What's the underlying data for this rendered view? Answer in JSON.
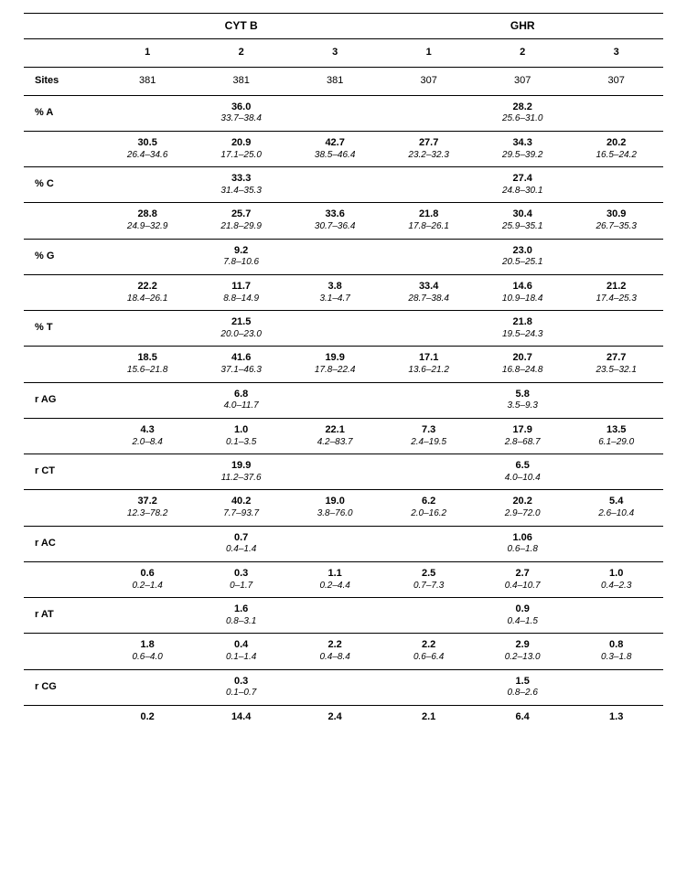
{
  "headers": {
    "group1": "CYT B",
    "group2": "GHR",
    "cols": [
      "1",
      "2",
      "3",
      "1",
      "2",
      "3"
    ],
    "sites_label": "Sites",
    "sites_vals": [
      "381",
      "381",
      "381",
      "307",
      "307",
      "307"
    ]
  },
  "rows": [
    {
      "label": "% A",
      "overall": [
        {
          "mean": "36.0",
          "range": "33.7–38.4"
        },
        {
          "mean": "28.2",
          "range": "25.6–31.0"
        }
      ],
      "vals": [
        {
          "mean": "30.5",
          "range": "26.4–34.6"
        },
        {
          "mean": "20.9",
          "range": "17.1–25.0"
        },
        {
          "mean": "42.7",
          "range": "38.5–46.4"
        },
        {
          "mean": "27.7",
          "range": "23.2–32.3"
        },
        {
          "mean": "34.3",
          "range": "29.5–39.2"
        },
        {
          "mean": "20.2",
          "range": "16.5–24.2"
        }
      ]
    },
    {
      "label": "% C",
      "overall": [
        {
          "mean": "33.3",
          "range": "31.4–35.3"
        },
        {
          "mean": "27.4",
          "range": "24.8–30.1"
        }
      ],
      "vals": [
        {
          "mean": "28.8",
          "range": "24.9–32.9"
        },
        {
          "mean": "25.7",
          "range": "21.8–29.9"
        },
        {
          "mean": "33.6",
          "range": "30.7–36.4"
        },
        {
          "mean": "21.8",
          "range": "17.8–26.1"
        },
        {
          "mean": "30.4",
          "range": "25.9–35.1"
        },
        {
          "mean": "30.9",
          "range": "26.7–35.3"
        }
      ]
    },
    {
      "label": "% G",
      "overall": [
        {
          "mean": "9.2",
          "range": "7.8–10.6"
        },
        {
          "mean": "23.0",
          "range": "20.5–25.1"
        }
      ],
      "vals": [
        {
          "mean": "22.2",
          "range": "18.4–26.1"
        },
        {
          "mean": "11.7",
          "range": "8.8–14.9"
        },
        {
          "mean": "3.8",
          "range": "3.1–4.7"
        },
        {
          "mean": "33.4",
          "range": "28.7–38.4"
        },
        {
          "mean": "14.6",
          "range": "10.9–18.4"
        },
        {
          "mean": "21.2",
          "range": "17.4–25.3"
        }
      ]
    },
    {
      "label": "% T",
      "overall": [
        {
          "mean": "21.5",
          "range": "20.0–23.0"
        },
        {
          "mean": "21.8",
          "range": "19.5–24.3"
        }
      ],
      "vals": [
        {
          "mean": "18.5",
          "range": "15.6–21.8"
        },
        {
          "mean": "41.6",
          "range": "37.1–46.3"
        },
        {
          "mean": "19.9",
          "range": "17.8–22.4"
        },
        {
          "mean": "17.1",
          "range": "13.6–21.2"
        },
        {
          "mean": "20.7",
          "range": "16.8–24.8"
        },
        {
          "mean": "27.7",
          "range": "23.5–32.1"
        }
      ]
    },
    {
      "label": "r AG",
      "overall": [
        {
          "mean": "6.8",
          "range": "4.0–11.7"
        },
        {
          "mean": "5.8",
          "range": "3.5–9.3"
        }
      ],
      "vals": [
        {
          "mean": "4.3",
          "range": "2.0–8.4"
        },
        {
          "mean": "1.0",
          "range": "0.1–3.5"
        },
        {
          "mean": "22.1",
          "range": "4.2–83.7"
        },
        {
          "mean": "7.3",
          "range": "2.4–19.5"
        },
        {
          "mean": "17.9",
          "range": "2.8–68.7"
        },
        {
          "mean": "13.5",
          "range": "6.1–29.0"
        }
      ]
    },
    {
      "label": "r CT",
      "overall": [
        {
          "mean": "19.9",
          "range": "11.2–37.6"
        },
        {
          "mean": "6.5",
          "range": "4.0–10.4"
        }
      ],
      "vals": [
        {
          "mean": "37.2",
          "range": "12.3–78.2"
        },
        {
          "mean": "40.2",
          "range": "7.7–93.7"
        },
        {
          "mean": "19.0",
          "range": "3.8–76.0"
        },
        {
          "mean": "6.2",
          "range": "2.0–16.2"
        },
        {
          "mean": "20.2",
          "range": "2.9–72.0"
        },
        {
          "mean": "5.4",
          "range": "2.6–10.4"
        }
      ]
    },
    {
      "label": "r AC",
      "overall": [
        {
          "mean": "0.7",
          "range": "0.4–1.4"
        },
        {
          "mean": "1.06",
          "range": "0.6–1.8"
        }
      ],
      "vals": [
        {
          "mean": "0.6",
          "range": "0.2–1.4"
        },
        {
          "mean": "0.3",
          "range": "0–1.7"
        },
        {
          "mean": "1.1",
          "range": "0.2–4.4"
        },
        {
          "mean": "2.5",
          "range": "0.7–7.3"
        },
        {
          "mean": "2.7",
          "range": "0.4–10.7"
        },
        {
          "mean": "1.0",
          "range": "0.4–2.3"
        }
      ]
    },
    {
      "label": "r AT",
      "overall": [
        {
          "mean": "1.6",
          "range": "0.8–3.1"
        },
        {
          "mean": "0.9",
          "range": "0.4–1.5"
        }
      ],
      "vals": [
        {
          "mean": "1.8",
          "range": "0.6–4.0"
        },
        {
          "mean": "0.4",
          "range": "0.1–1.4"
        },
        {
          "mean": "2.2",
          "range": "0.4–8.4"
        },
        {
          "mean": "2.2",
          "range": "0.6–6.4"
        },
        {
          "mean": "2.9",
          "range": "0.2–13.0"
        },
        {
          "mean": "0.8",
          "range": "0.3–1.8"
        }
      ]
    },
    {
      "label": "r CG",
      "overall": [
        {
          "mean": "0.3",
          "range": "0.1–0.7"
        },
        {
          "mean": "1.5",
          "range": "0.8–2.6"
        }
      ],
      "single_vals": [
        "0.2",
        "14.4",
        "2.4",
        "2.1",
        "6.4",
        "1.3"
      ]
    }
  ]
}
